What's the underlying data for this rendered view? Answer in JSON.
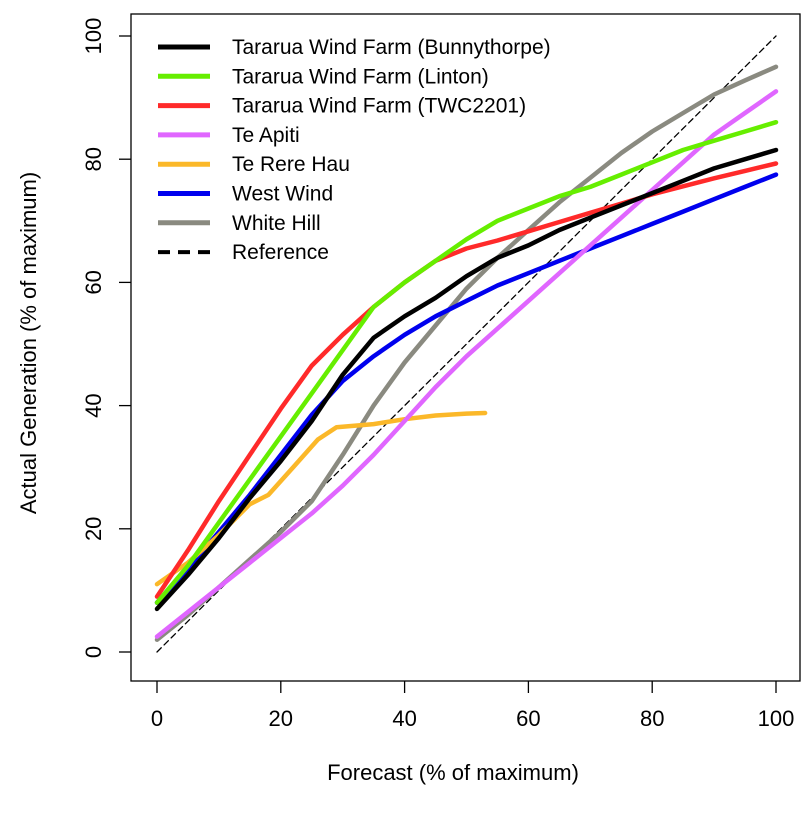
{
  "chart_data": {
    "type": "line",
    "title": "",
    "xlabel": "Forecast (% of maximum)",
    "ylabel": "Actual Generation (% of maximum)",
    "xlim": [
      0,
      100
    ],
    "ylim": [
      0,
      100
    ],
    "xticks": [
      "0",
      "20",
      "40",
      "60",
      "80",
      "100"
    ],
    "yticks": [
      "0",
      "20",
      "40",
      "60",
      "80",
      "100"
    ],
    "grid": false,
    "legend_position": "top-left",
    "series": [
      {
        "name": "Tararua Wind Farm (Bunnythorpe)",
        "color": "#000000",
        "dashed": false,
        "x": [
          0,
          5,
          10,
          15,
          20,
          25,
          30,
          35,
          40,
          45,
          50,
          55,
          60,
          65,
          70,
          75,
          80,
          85,
          90,
          95,
          100
        ],
        "y": [
          7,
          12.5,
          18.5,
          25,
          31,
          37.5,
          45,
          51,
          54.5,
          57.5,
          61,
          64,
          66,
          68.5,
          70.5,
          72.5,
          74.5,
          76.5,
          78.5,
          80,
          81.5
        ]
      },
      {
        "name": "Tararua Wind Farm (Linton)",
        "color": "#66ee00",
        "dashed": false,
        "x": [
          0,
          5,
          10,
          15,
          20,
          25,
          30,
          35,
          40,
          45,
          50,
          55,
          60,
          65,
          70,
          75,
          80,
          85,
          90,
          95,
          100
        ],
        "y": [
          8,
          14,
          21,
          28,
          35,
          42,
          49,
          56,
          60,
          63.5,
          67,
          70,
          72,
          74,
          75.5,
          77.5,
          79.5,
          81.5,
          83,
          84.5,
          86
        ]
      },
      {
        "name": "Tararua Wind Farm (TWC2201)",
        "color": "#ff2a2a",
        "dashed": false,
        "x": [
          0,
          5,
          10,
          15,
          20,
          25,
          30,
          35,
          40,
          45,
          50,
          55,
          60,
          65,
          70,
          75,
          80,
          85,
          90,
          95,
          100
        ],
        "y": [
          9,
          16.5,
          24.5,
          32,
          39.5,
          46.5,
          51.5,
          56,
          60,
          63.5,
          65.5,
          66.8,
          68.3,
          69.8,
          71.3,
          72.8,
          74.3,
          75.6,
          76.9,
          78.1,
          79.3
        ]
      },
      {
        "name": "Te Apiti",
        "color": "#e066ff",
        "dashed": false,
        "x": [
          0,
          5,
          10,
          15,
          20,
          25,
          30,
          35,
          40,
          45,
          50,
          55,
          60,
          65,
          70,
          75,
          80,
          85,
          90,
          95,
          100
        ],
        "y": [
          2.5,
          6.5,
          10.5,
          14.5,
          18.5,
          22.5,
          27,
          32,
          37.5,
          43,
          48,
          52.5,
          57,
          61.5,
          66,
          70.5,
          75,
          79.5,
          84,
          87.5,
          91
        ]
      },
      {
        "name": "Te Rere Hau",
        "color": "#fbb829",
        "dashed": false,
        "x": [
          0,
          5,
          10,
          15,
          18,
          22,
          26,
          29,
          35,
          40,
          45,
          50,
          53
        ],
        "y": [
          11,
          14.5,
          19,
          24,
          25.5,
          30,
          34.5,
          36.5,
          37,
          37.8,
          38.4,
          38.7,
          38.8
        ]
      },
      {
        "name": "West Wind",
        "color": "#0000ee",
        "dashed": false,
        "x": [
          0,
          5,
          10,
          15,
          20,
          25,
          30,
          35,
          40,
          45,
          50,
          55,
          60,
          65,
          70,
          75,
          80,
          85,
          90,
          95,
          100
        ],
        "y": [
          8,
          13.5,
          19.5,
          25.5,
          32,
          38.5,
          44,
          48,
          51.5,
          54.5,
          57,
          59.5,
          61.5,
          63.5,
          65.5,
          67.5,
          69.5,
          71.5,
          73.5,
          75.5,
          77.5
        ]
      },
      {
        "name": "White Hill",
        "color": "#8a8a80",
        "dashed": false,
        "x": [
          0,
          5,
          10,
          15,
          20,
          25,
          30,
          35,
          40,
          45,
          50,
          55,
          60,
          65,
          70,
          75,
          80,
          85,
          90,
          95,
          100
        ],
        "y": [
          2,
          6,
          10.5,
          15,
          19.5,
          24.5,
          32,
          40,
          47,
          53,
          59,
          64,
          68.5,
          73,
          77,
          81,
          84.5,
          87.5,
          90.5,
          92.8,
          95
        ]
      },
      {
        "name": "Reference",
        "color": "#000000",
        "dashed": true,
        "x": [
          0,
          100
        ],
        "y": [
          0,
          100
        ]
      }
    ]
  }
}
